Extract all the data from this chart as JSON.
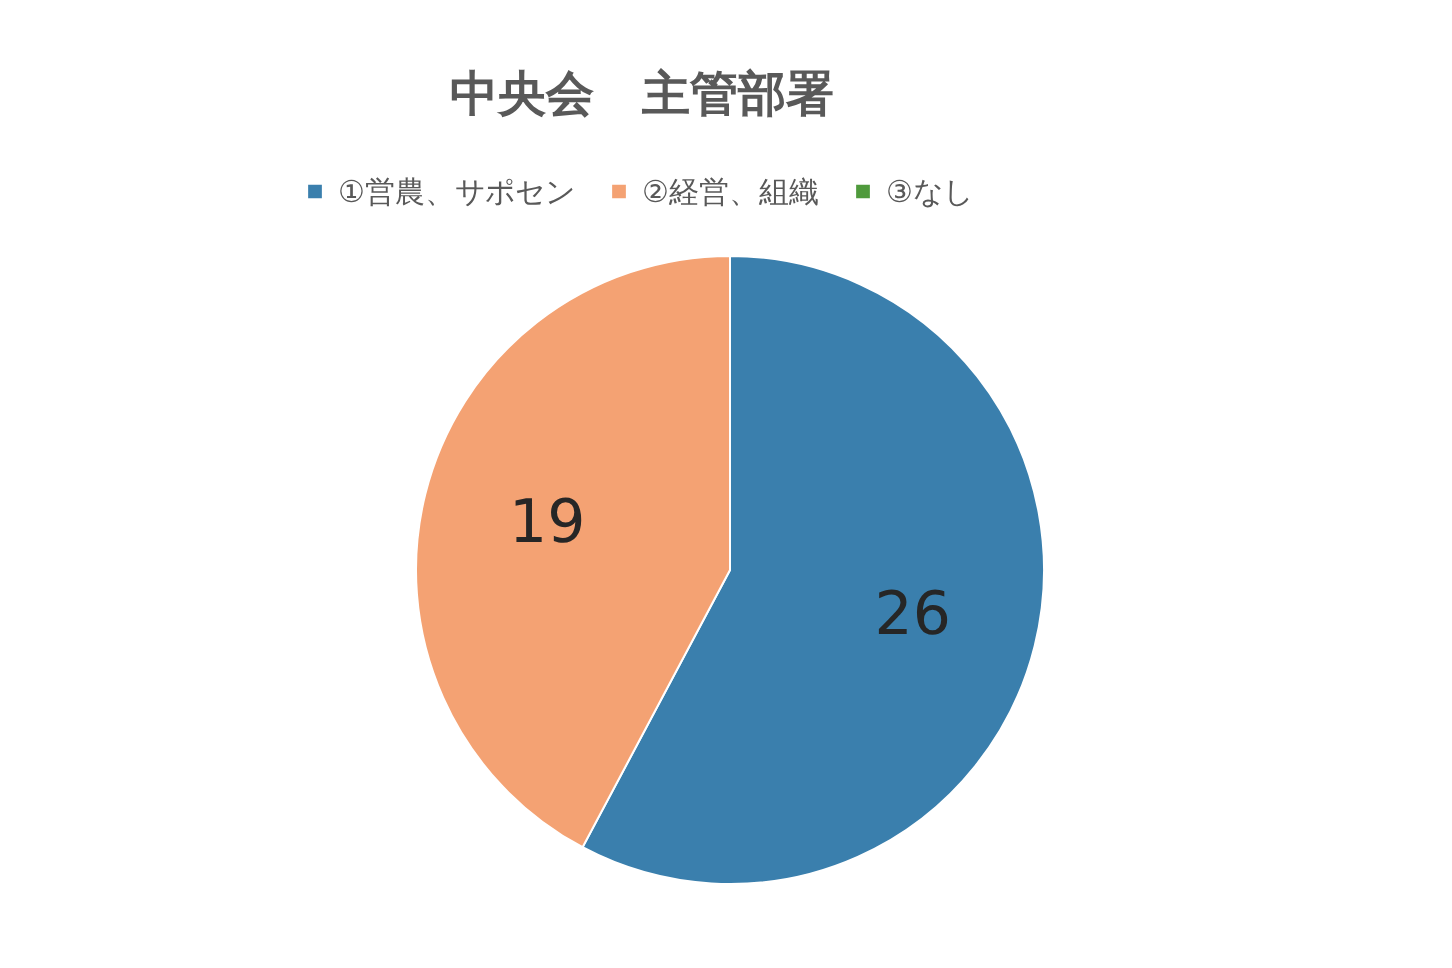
{
  "chart_data": {
    "type": "pie",
    "title": "中央会　主管部署",
    "categories": [
      "①営農、サポセン",
      "②経営、組織",
      "③なし"
    ],
    "values": [
      26,
      19,
      0
    ],
    "colors": [
      "#3a7fad",
      "#f4a273",
      "#4f9a3c"
    ],
    "value_labels": [
      "26",
      "19",
      null
    ],
    "legend": "top"
  }
}
